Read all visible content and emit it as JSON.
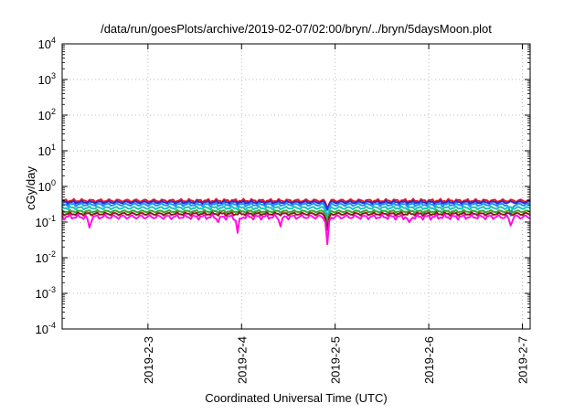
{
  "chart_data": {
    "type": "line",
    "title": "/data/run/goesPlots/archive/2019-02-07/02:00/bryn/../bryn/5daysMoon.plot",
    "xlabel": "Coordinated Universal Time (UTC)",
    "ylabel": "cGy/day",
    "y_scale": "log",
    "ylim": [
      0.0001,
      10000
    ],
    "y_ticks": [
      {
        "value": 0.0001,
        "base": "10",
        "exp": "-4"
      },
      {
        "value": 0.001,
        "base": "10",
        "exp": "-3"
      },
      {
        "value": 0.01,
        "base": "10",
        "exp": "-2"
      },
      {
        "value": 0.1,
        "base": "10",
        "exp": "-1"
      },
      {
        "value": 1,
        "base": "10",
        "exp": "0"
      },
      {
        "value": 10,
        "base": "10",
        "exp": "1"
      },
      {
        "value": 100,
        "base": "10",
        "exp": "2"
      },
      {
        "value": 1000,
        "base": "10",
        "exp": "3"
      },
      {
        "value": 10000,
        "base": "10",
        "exp": "4"
      }
    ],
    "xlim": [
      "2019-02-02T02:00",
      "2019-02-07T02:00"
    ],
    "x_ticks": [
      {
        "value": "2019-02-03T00:00",
        "label": "2019-2-3"
      },
      {
        "value": "2019-02-04T00:00",
        "label": "2019-2-4"
      },
      {
        "value": "2019-02-05T00:00",
        "label": "2019-2-5"
      },
      {
        "value": "2019-02-06T00:00",
        "label": "2019-2-6"
      },
      {
        "value": "2019-02-07T00:00",
        "label": "2019-2-7"
      }
    ],
    "grid": true,
    "series": [
      {
        "color": "#e8161b",
        "base": 0.4,
        "amp": 0.05,
        "dips": [
          {
            "t": "2019-02-04T22:00",
            "v": 0.24
          }
        ]
      },
      {
        "color": "#2a2ad8",
        "base": 0.36,
        "amp": 0.04,
        "dips": [
          {
            "t": "2019-02-04T22:00",
            "v": 0.22
          }
        ]
      },
      {
        "color": "#1e90ff",
        "base": 0.31,
        "amp": 0.04,
        "dips": [
          {
            "t": "2019-02-04T22:00",
            "v": 0.12
          },
          {
            "t": "2019-02-06T21:00",
            "v": 0.15
          }
        ]
      },
      {
        "color": "#16c9b0",
        "base": 0.25,
        "amp": 0.03,
        "dips": [
          {
            "t": "2019-02-04T22:00",
            "v": 0.11
          }
        ]
      },
      {
        "color": "#33aa33",
        "base": 0.2,
        "amp": 0.02,
        "dips": [
          {
            "t": "2019-02-04T22:00",
            "v": 0.09
          }
        ]
      },
      {
        "color": "#8b1a1a",
        "base": 0.17,
        "amp": 0.02,
        "dips": [
          {
            "t": "2019-02-04T22:00",
            "v": 0.06
          }
        ]
      },
      {
        "color": "#ff10e0",
        "base": 0.14,
        "amp": 0.025,
        "dips": [
          {
            "t": "2019-02-02T09:00",
            "v": 0.07
          },
          {
            "t": "2019-02-03T18:00",
            "v": 0.1
          },
          {
            "t": "2019-02-03T23:00",
            "v": 0.05
          },
          {
            "t": "2019-02-04T10:00",
            "v": 0.075
          },
          {
            "t": "2019-02-04T22:00",
            "v": 0.024
          },
          {
            "t": "2019-02-05T19:00",
            "v": 0.1
          },
          {
            "t": "2019-02-06T21:00",
            "v": 0.08
          }
        ]
      }
    ]
  }
}
